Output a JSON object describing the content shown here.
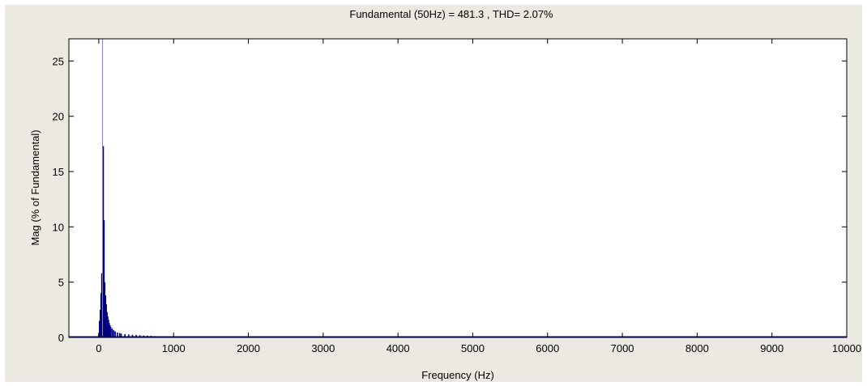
{
  "chart_data": {
    "type": "bar",
    "title": "Fundamental (50Hz) = 481.3 , THD= 2.07%",
    "xlabel": "Frequency (Hz)",
    "ylabel": "Mag (% of Fundamental)",
    "xlim": [
      -400,
      10000
    ],
    "ylim": [
      0,
      27
    ],
    "x_ticks": [
      0,
      1000,
      2000,
      3000,
      4000,
      5000,
      6000,
      7000,
      8000,
      9000,
      10000
    ],
    "y_ticks": [
      0,
      5,
      10,
      15,
      20,
      25
    ],
    "grid": false,
    "bar_color": "#00007f",
    "fundamental_marker_color": "#8080c0",
    "fundamental_marker_x": 50,
    "series": [
      {
        "x": [
          0,
          10,
          20,
          30,
          40,
          60,
          70,
          80,
          90,
          100,
          110,
          120,
          130,
          140,
          150,
          160,
          180,
          200,
          220,
          250,
          280,
          300,
          350,
          400,
          450,
          500,
          550,
          600,
          650,
          700,
          750
        ],
        "values": [
          0.3,
          1.5,
          2.5,
          4.0,
          5.8,
          17.3,
          10.6,
          5.0,
          3.8,
          3.0,
          2.3,
          1.9,
          1.6,
          1.3,
          1.1,
          0.95,
          0.8,
          0.65,
          0.55,
          0.45,
          0.4,
          0.35,
          0.3,
          0.27,
          0.24,
          0.22,
          0.2,
          0.18,
          0.16,
          0.15,
          0.12
        ]
      }
    ]
  }
}
